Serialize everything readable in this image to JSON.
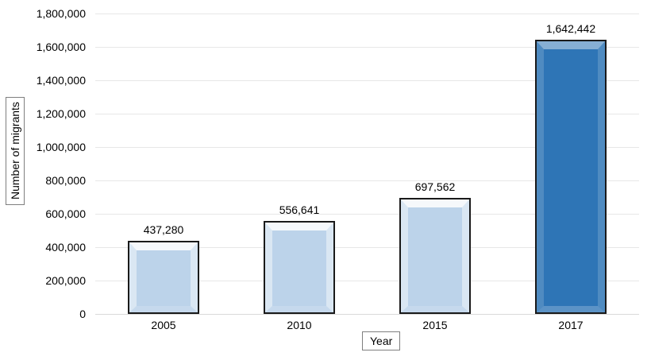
{
  "chart_data": {
    "type": "bar",
    "title": "",
    "categories": [
      "2005",
      "2010",
      "2015",
      "2017"
    ],
    "values": [
      437280,
      556641,
      697562,
      1642442
    ],
    "value_labels": [
      "437,280",
      "556,641",
      "697,562",
      "1,642,442"
    ],
    "xlabel": "Year",
    "ylabel": "Number of migrants",
    "ylim": [
      0,
      1800000
    ],
    "ytick_interval": 200000,
    "y_tick_labels_top_to_bottom": [
      "1,800,000",
      "1,600,000",
      "1,400,000",
      "1,200,000",
      "1,000,000",
      "800,000",
      "600,000",
      "400,000",
      "200,000",
      "0"
    ],
    "grid": true,
    "legend": false,
    "highlight_index": 3,
    "bar_colors": [
      "#bcd3ea",
      "#bcd3ea",
      "#bcd3ea",
      "#2e75b6"
    ],
    "bar_border_color": "#1a1a1a",
    "gridline_color": "#e7e7e7",
    "axis_line_color": "#d9d9d9",
    "background_color": "#ffffff"
  }
}
